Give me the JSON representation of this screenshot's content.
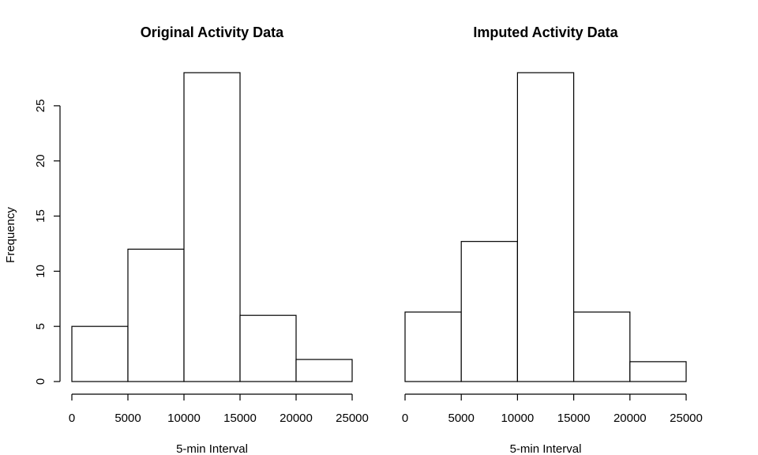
{
  "chart_data": [
    {
      "type": "bar",
      "title": "Original Activity Data",
      "xlabel": "5-min Interval",
      "ylabel": "Frequency",
      "bins": [
        [
          0,
          5000
        ],
        [
          5000,
          10000
        ],
        [
          10000,
          15000
        ],
        [
          15000,
          20000
        ],
        [
          20000,
          25000
        ]
      ],
      "values": [
        5,
        12,
        28,
        6,
        2
      ],
      "xlim": [
        0,
        25000
      ],
      "ylim": [
        0,
        28
      ],
      "xticks": [
        0,
        5000,
        10000,
        15000,
        20000,
        25000
      ],
      "yticks": [
        0,
        5,
        10,
        15,
        20,
        25
      ],
      "grid": false
    },
    {
      "type": "bar",
      "title": "Imputed Activity Data",
      "xlabel": "5-min Interval",
      "ylabel": "",
      "bins": [
        [
          0,
          5000
        ],
        [
          5000,
          10000
        ],
        [
          10000,
          15000
        ],
        [
          15000,
          20000
        ],
        [
          20000,
          25000
        ]
      ],
      "values": [
        6.3,
        12.7,
        28,
        6.3,
        1.8
      ],
      "xlim": [
        0,
        25000
      ],
      "ylim": [
        0,
        28
      ],
      "xticks": [
        0,
        5000,
        10000,
        15000,
        20000,
        25000
      ],
      "yticks": [],
      "grid": false
    }
  ]
}
